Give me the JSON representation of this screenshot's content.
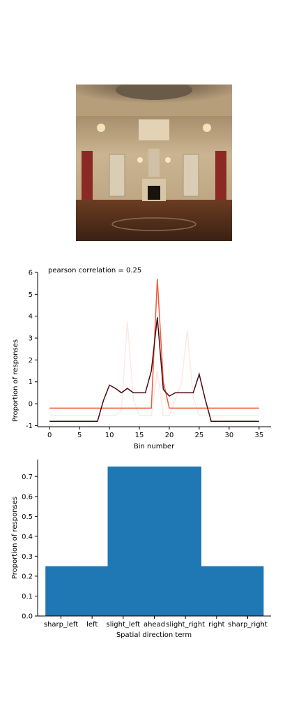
{
  "image": {
    "name": "ornate-ballroom-photo"
  },
  "chart_data": [
    {
      "type": "line",
      "annotation": "pearson correlation = 0.25",
      "xlabel": "Bin number",
      "ylabel": "Proportion of responses",
      "xlim": [
        -2,
        37
      ],
      "ylim": [
        -1.05,
        6
      ],
      "xticks": [
        0,
        5,
        10,
        15,
        20,
        25,
        30,
        35
      ],
      "yticks": [
        -1,
        0,
        1,
        2,
        3,
        4,
        5,
        6
      ],
      "grid": false,
      "colors": {
        "faint": "#fde8e4",
        "orange": "#f05a3c",
        "dark": "#4a0b10"
      },
      "series": [
        {
          "x": [
            0,
            1,
            2,
            3,
            4,
            5,
            6,
            7,
            8,
            9,
            10,
            11,
            12,
            13,
            14,
            15,
            16,
            17,
            18,
            19,
            20,
            21,
            22,
            23,
            24,
            25,
            26,
            27,
            28,
            29,
            30,
            31,
            32,
            33,
            34,
            35
          ],
          "values": [
            -0.55,
            -0.55,
            -0.55,
            -0.55,
            -0.55,
            -0.55,
            -0.55,
            -0.55,
            -0.55,
            -0.55,
            -0.55,
            -0.55,
            -0.3,
            3.75,
            0.2,
            -0.55,
            -0.55,
            -0.55,
            1.5,
            -0.55,
            -0.55,
            0.2,
            0.9,
            3.35,
            0.3,
            -0.55,
            -0.55,
            -0.55,
            -0.55,
            -0.55,
            -0.55,
            -0.55,
            -0.55,
            -0.55,
            -0.55,
            -0.55
          ]
        },
        {
          "x": [
            0,
            1,
            2,
            3,
            4,
            5,
            6,
            7,
            8,
            9,
            10,
            11,
            12,
            13,
            14,
            15,
            16,
            17,
            18,
            19,
            20,
            21,
            22,
            23,
            24,
            25,
            26,
            27,
            28,
            29,
            30,
            31,
            32,
            33,
            34,
            35
          ],
          "values": [
            -0.2,
            -0.2,
            -0.2,
            -0.2,
            -0.2,
            -0.2,
            -0.2,
            -0.2,
            -0.2,
            -0.2,
            -0.2,
            -0.2,
            -0.2,
            -0.2,
            -0.2,
            -0.2,
            -0.2,
            -0.2,
            5.7,
            1.0,
            -0.2,
            -0.2,
            -0.2,
            -0.2,
            -0.2,
            -0.2,
            -0.2,
            -0.2,
            -0.2,
            -0.2,
            -0.2,
            -0.2,
            -0.2,
            -0.2,
            -0.2,
            -0.2
          ]
        },
        {
          "x": [
            0,
            1,
            2,
            3,
            4,
            5,
            6,
            7,
            8,
            9,
            10,
            11,
            12,
            13,
            14,
            15,
            16,
            17,
            18,
            19,
            20,
            21,
            22,
            23,
            24,
            25,
            26,
            27,
            28,
            29,
            30,
            31,
            32,
            33,
            34,
            35
          ],
          "values": [
            -0.8,
            -0.8,
            -0.8,
            -0.8,
            -0.8,
            -0.8,
            -0.8,
            -0.8,
            -0.8,
            0.15,
            0.85,
            0.7,
            0.5,
            0.7,
            0.5,
            0.5,
            0.5,
            1.5,
            3.95,
            0.65,
            0.35,
            0.5,
            0.5,
            0.5,
            0.5,
            1.35,
            0.2,
            -0.8,
            -0.8,
            -0.8,
            -0.8,
            -0.8,
            -0.8,
            -0.8,
            -0.8,
            -0.8
          ]
        }
      ]
    },
    {
      "type": "bar",
      "xlabel": "Spatial direction term",
      "ylabel": "Proportion of responses",
      "categories": [
        "sharp_left",
        "left",
        "slight_left",
        "ahead",
        "slight_right",
        "right",
        "sharp_right"
      ],
      "values": [
        0.25,
        0.25,
        0.75,
        0.75,
        0.75,
        0.25,
        0.25
      ],
      "ylim": [
        0,
        0.785
      ],
      "yticks": [
        "0.0",
        "0.1",
        "0.2",
        "0.3",
        "0.4",
        "0.5",
        "0.6",
        "0.7"
      ],
      "bar_color": "#1f77b4",
      "grid": false
    }
  ]
}
